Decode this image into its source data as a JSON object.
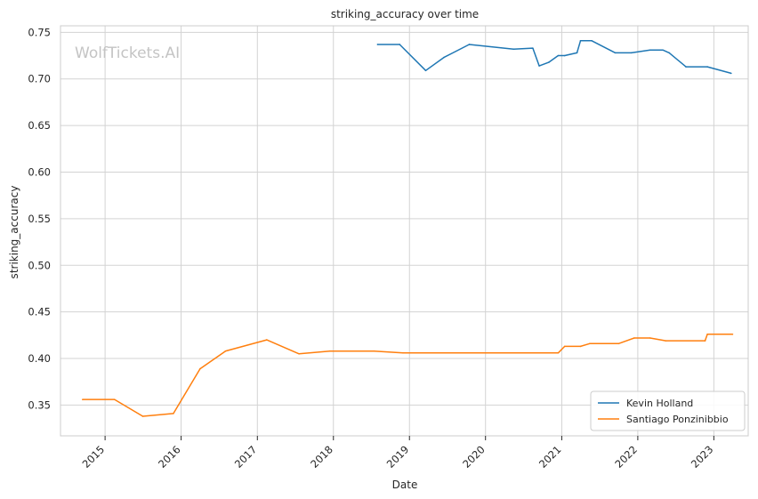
{
  "chart_data": {
    "type": "line",
    "title": "striking_accuracy over time",
    "xlabel": "Date",
    "ylabel": "striking_accuracy",
    "watermark": "WolfTickets.AI",
    "xlim": [
      "2014-06-01",
      "2023-06-15"
    ],
    "ylim": [
      0.317,
      0.757
    ],
    "x_ticks": [
      "2015",
      "2016",
      "2017",
      "2018",
      "2019",
      "2020",
      "2021",
      "2022",
      "2023"
    ],
    "y_ticks": [
      "0.35",
      "0.40",
      "0.45",
      "0.50",
      "0.55",
      "0.60",
      "0.65",
      "0.70",
      "0.75"
    ],
    "grid": true,
    "legend_position": "lower-right",
    "series": [
      {
        "name": "Kevin Holland",
        "color": "#1f77b4",
        "points": [
          [
            "2018-08-01",
            0.737
          ],
          [
            "2018-11-15",
            0.737
          ],
          [
            "2019-03-20",
            0.709
          ],
          [
            "2019-06-15",
            0.723
          ],
          [
            "2019-10-15",
            0.737
          ],
          [
            "2020-05-15",
            0.732
          ],
          [
            "2020-08-15",
            0.733
          ],
          [
            "2020-09-15",
            0.714
          ],
          [
            "2020-11-01",
            0.718
          ],
          [
            "2020-12-15",
            0.725
          ],
          [
            "2021-01-15",
            0.725
          ],
          [
            "2021-03-15",
            0.728
          ],
          [
            "2021-04-01",
            0.741
          ],
          [
            "2021-05-25",
            0.741
          ],
          [
            "2021-09-15",
            0.728
          ],
          [
            "2021-12-01",
            0.728
          ],
          [
            "2022-03-01",
            0.731
          ],
          [
            "2022-05-01",
            0.731
          ],
          [
            "2022-06-01",
            0.728
          ],
          [
            "2022-08-20",
            0.713
          ],
          [
            "2022-12-01",
            0.713
          ],
          [
            "2023-03-25",
            0.706
          ]
        ]
      },
      {
        "name": "Santiago Ponzinibbio",
        "color": "#ff7f0e",
        "points": [
          [
            "2014-09-15",
            0.356
          ],
          [
            "2015-02-15",
            0.356
          ],
          [
            "2015-07-01",
            0.338
          ],
          [
            "2015-11-25",
            0.341
          ],
          [
            "2016-04-01",
            0.389
          ],
          [
            "2016-08-01",
            0.408
          ],
          [
            "2017-02-15",
            0.42
          ],
          [
            "2017-07-20",
            0.405
          ],
          [
            "2017-12-15",
            0.408
          ],
          [
            "2018-07-15",
            0.408
          ],
          [
            "2018-12-01",
            0.406
          ],
          [
            "2020-12-15",
            0.406
          ],
          [
            "2021-01-15",
            0.413
          ],
          [
            "2021-04-01",
            0.413
          ],
          [
            "2021-05-15",
            0.416
          ],
          [
            "2021-10-01",
            0.416
          ],
          [
            "2021-12-15",
            0.422
          ],
          [
            "2022-03-01",
            0.422
          ],
          [
            "2022-05-15",
            0.419
          ],
          [
            "2022-11-20",
            0.419
          ],
          [
            "2022-12-01",
            0.426
          ],
          [
            "2023-04-01",
            0.426
          ]
        ]
      }
    ]
  }
}
